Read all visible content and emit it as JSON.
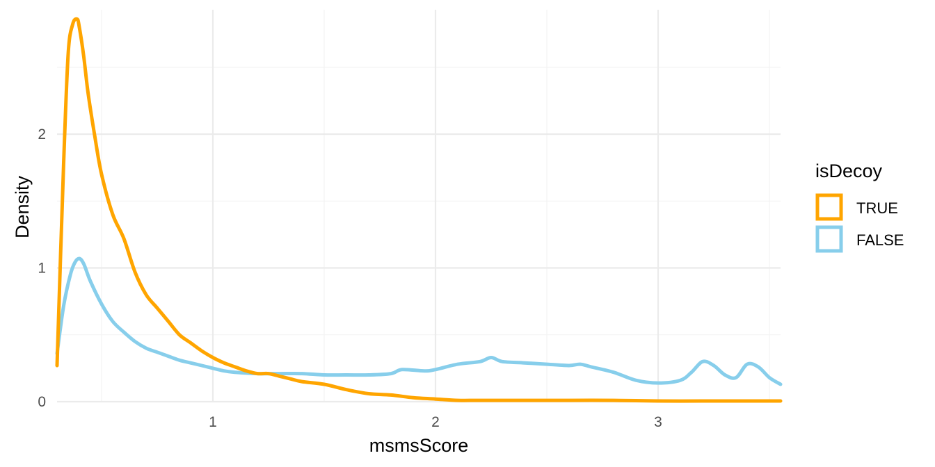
{
  "chart_data": {
    "type": "line",
    "subtype": "density",
    "title": "",
    "xlabel": "msmsScore",
    "ylabel": "Density",
    "xlim": [
      0.3,
      3.55
    ],
    "ylim": [
      0,
      2.93
    ],
    "x_ticks": [
      1,
      2,
      3
    ],
    "x_tick_labels": [
      "1",
      "2",
      "3"
    ],
    "y_ticks": [
      0,
      1,
      2
    ],
    "y_tick_labels": [
      "0",
      "1",
      "2"
    ],
    "grid": true,
    "legend": {
      "title": "isDecoy",
      "position": "right"
    },
    "series": [
      {
        "name": "TRUE",
        "color": "#FFA500",
        "x": [
          0.3,
          0.33,
          0.35,
          0.37,
          0.39,
          0.4,
          0.42,
          0.44,
          0.47,
          0.5,
          0.55,
          0.6,
          0.65,
          0.7,
          0.75,
          0.8,
          0.85,
          0.9,
          0.95,
          1.0,
          1.05,
          1.1,
          1.15,
          1.2,
          1.25,
          1.3,
          1.35,
          1.4,
          1.5,
          1.6,
          1.7,
          1.8,
          1.9,
          2.0,
          2.1,
          2.2,
          2.4,
          2.6,
          2.8,
          3.0,
          3.2,
          3.4,
          3.55
        ],
        "y": [
          0.27,
          1.8,
          2.6,
          2.82,
          2.86,
          2.8,
          2.58,
          2.3,
          1.98,
          1.7,
          1.4,
          1.22,
          0.97,
          0.8,
          0.7,
          0.6,
          0.5,
          0.44,
          0.38,
          0.33,
          0.29,
          0.26,
          0.23,
          0.21,
          0.21,
          0.19,
          0.17,
          0.15,
          0.13,
          0.09,
          0.06,
          0.05,
          0.03,
          0.02,
          0.01,
          0.01,
          0.01,
          0.01,
          0.01,
          0.005,
          0.005,
          0.005,
          0.005
        ]
      },
      {
        "name": "FALSE",
        "color": "#87CEEB",
        "x": [
          0.3,
          0.33,
          0.36,
          0.38,
          0.4,
          0.42,
          0.45,
          0.5,
          0.55,
          0.6,
          0.65,
          0.7,
          0.75,
          0.8,
          0.85,
          0.9,
          0.95,
          1.0,
          1.05,
          1.1,
          1.2,
          1.3,
          1.4,
          1.5,
          1.6,
          1.7,
          1.8,
          1.85,
          1.95,
          2.0,
          2.1,
          2.2,
          2.25,
          2.3,
          2.4,
          2.5,
          2.6,
          2.65,
          2.7,
          2.8,
          2.9,
          3.0,
          3.1,
          3.15,
          3.2,
          3.25,
          3.3,
          3.35,
          3.4,
          3.45,
          3.5,
          3.55
        ],
        "y": [
          0.36,
          0.72,
          0.95,
          1.04,
          1.07,
          1.03,
          0.9,
          0.73,
          0.6,
          0.52,
          0.45,
          0.4,
          0.37,
          0.34,
          0.31,
          0.29,
          0.27,
          0.25,
          0.23,
          0.22,
          0.21,
          0.21,
          0.21,
          0.2,
          0.2,
          0.2,
          0.21,
          0.24,
          0.23,
          0.24,
          0.28,
          0.3,
          0.33,
          0.3,
          0.29,
          0.28,
          0.27,
          0.28,
          0.26,
          0.22,
          0.16,
          0.14,
          0.16,
          0.22,
          0.3,
          0.27,
          0.2,
          0.18,
          0.28,
          0.26,
          0.18,
          0.13
        ]
      }
    ]
  }
}
